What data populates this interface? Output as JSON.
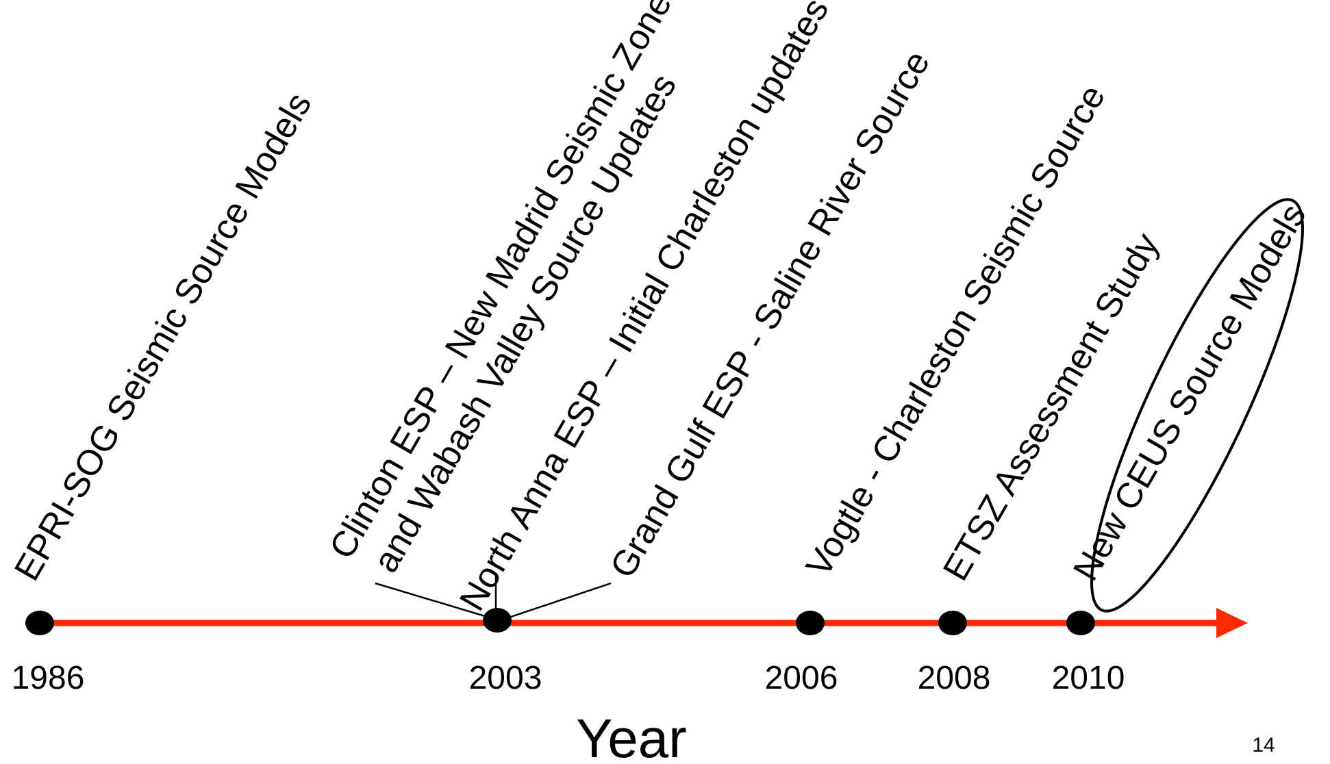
{
  "axis_title": "Year",
  "page_number": "14",
  "colors": {
    "timeline": "#ff2a00",
    "marker": "#000000",
    "text": "#000000",
    "background": "#ffffff"
  },
  "timeline": {
    "years": [
      "1986",
      "2003",
      "2006",
      "2008",
      "2010"
    ],
    "events": [
      {
        "year": "1986",
        "label": "EPRI-SOG Seismic Source Models"
      },
      {
        "year": "2003",
        "label": "Clinton ESP – New Madrid Seismic Zone"
      },
      {
        "year": "2003",
        "label": "and Wabash Valley Source Updates"
      },
      {
        "year": "2003",
        "label": "North Anna ESP – Initial Charleston updates"
      },
      {
        "year": "2003",
        "label": "Grand Gulf ESP - Saline River Source"
      },
      {
        "year": "2006",
        "label": "Vogtle - Charleston Seismic Source"
      },
      {
        "year": "2008",
        "label": "ETSZ Assessment Study"
      },
      {
        "year": "2010",
        "label": "New CEUS Source Models",
        "highlighted": true
      }
    ]
  }
}
